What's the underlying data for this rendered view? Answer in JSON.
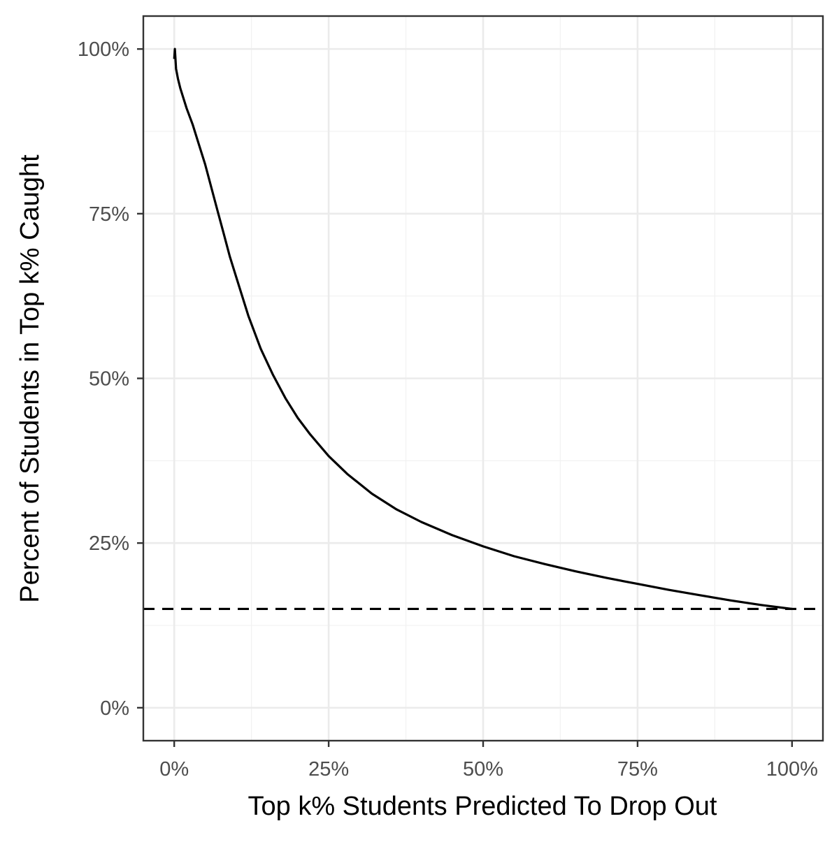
{
  "chart_data": {
    "type": "line",
    "title": "",
    "xlabel": "Top k% Students Predicted To Drop Out",
    "ylabel": "Percent of Students in Top k% Caught",
    "xlim": [
      -5,
      105
    ],
    "ylim": [
      -5,
      105
    ],
    "x_ticks": [
      0,
      25,
      50,
      75,
      100
    ],
    "x_tick_labels": [
      "0%",
      "25%",
      "50%",
      "75%",
      "100%"
    ],
    "y_ticks": [
      0,
      25,
      50,
      75,
      100
    ],
    "y_tick_labels": [
      "0%",
      "25%",
      "50%",
      "75%",
      "100%"
    ],
    "grid": true,
    "series": [
      {
        "style": "solid",
        "color": "#000000",
        "x": [
          0,
          0.1,
          0.3,
          0.6,
          1,
          2,
          3,
          4,
          5,
          6,
          7,
          8,
          9,
          10,
          12,
          14,
          16,
          18,
          20,
          22,
          25,
          28,
          32,
          36,
          40,
          45,
          50,
          55,
          60,
          65,
          70,
          75,
          80,
          85,
          90,
          95,
          100
        ],
        "y": [
          98.5,
          100,
          97,
          95.5,
          94,
          91,
          88.5,
          85.5,
          82.5,
          79,
          75.5,
          72,
          68.5,
          65.5,
          59.5,
          54.5,
          50.5,
          47,
          44,
          41.5,
          38.2,
          35.5,
          32.5,
          30.1,
          28.2,
          26.2,
          24.5,
          23,
          21.8,
          20.7,
          19.7,
          18.8,
          17.9,
          17.1,
          16.3,
          15.6,
          15
        ]
      }
    ],
    "reference_line": {
      "y": 15,
      "style": "dashed",
      "color": "#000000"
    },
    "colors": {
      "line": "#000000",
      "grid": "#ebebeb",
      "border": "#333333",
      "tick_text": "#4d4d4d"
    }
  }
}
